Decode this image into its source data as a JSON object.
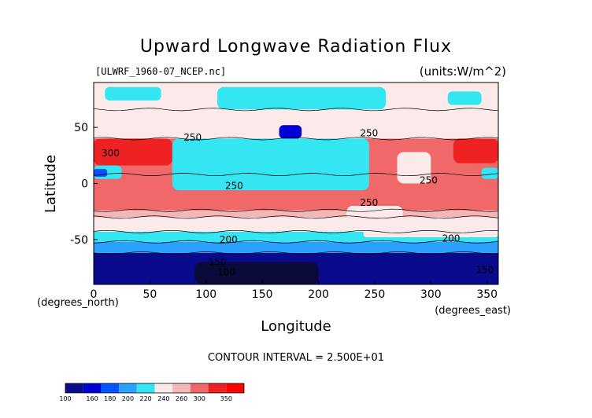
{
  "chart_data": {
    "type": "heatmap",
    "title": "Upward Longwave Radiation Flux",
    "subtitle_left": "[ULWRF_1960-07_NCEP.nc]",
    "subtitle_right": "(units:W/m^2)",
    "xlabel": "Longitude",
    "ylabel": "Latitude",
    "x_unit_label": "(degrees_east)",
    "y_unit_label": "(degrees_north)",
    "xlim": [
      0,
      360
    ],
    "ylim": [
      -90,
      90
    ],
    "x_ticks": [
      0,
      50,
      100,
      150,
      200,
      250,
      300,
      350
    ],
    "y_ticks": [
      -50,
      0,
      50
    ],
    "contour_interval_text": "CONTOUR INTERVAL = 2.500E+01",
    "contour_labels": [
      {
        "text": "300",
        "lon": 15,
        "lat": 24
      },
      {
        "text": "250",
        "lon": 88,
        "lat": 38
      },
      {
        "text": "250",
        "lon": 245,
        "lat": 42
      },
      {
        "text": "250",
        "lon": 125,
        "lat": -5
      },
      {
        "text": "250",
        "lon": 298,
        "lat": 0
      },
      {
        "text": "250",
        "lon": 245,
        "lat": -20
      },
      {
        "text": "200",
        "lon": 120,
        "lat": -53
      },
      {
        "text": "200",
        "lon": 318,
        "lat": -52
      },
      {
        "text": "150",
        "lon": 110,
        "lat": -73
      },
      {
        "text": "100",
        "lon": 118,
        "lat": -82
      },
      {
        "text": "150",
        "lon": 348,
        "lat": -80
      }
    ],
    "colorbar": {
      "labels": [
        "100",
        "160",
        "180",
        "200",
        "220",
        "240",
        "260",
        "300",
        "350"
      ],
      "colors": [
        "#0a0a8c",
        "#0000d2",
        "#0055ff",
        "#2aa0ff",
        "#33e6f2",
        "#fbeaea",
        "#f7b6b6",
        "#f06868",
        "#ee2222",
        "#ff0000"
      ]
    },
    "bands": [
      {
        "lat_top": -62,
        "lat_bot": -90,
        "color": "#0a0a8c"
      },
      {
        "lat_top": -52,
        "lat_bot": -62,
        "color": "#2aa0ff"
      },
      {
        "lat_top": -43,
        "lat_bot": -52,
        "color": "#33e6f2"
      },
      {
        "lat_top": -30,
        "lat_bot": -43,
        "color": "#fbeaea"
      },
      {
        "lat_top": -24,
        "lat_bot": -30,
        "color": "#f7b6b6"
      },
      {
        "lat_top": 8,
        "lat_bot": -24,
        "color": "#f06868"
      },
      {
        "lat_top": 40,
        "lat_bot": 8,
        "color": "#f06868"
      },
      {
        "lat_top": 66,
        "lat_bot": 40,
        "color": "#fbeaea"
      },
      {
        "lat_top": 90,
        "lat_bot": 66,
        "color": "#fbeaea"
      }
    ],
    "patches": [
      {
        "lon": [
          0,
          70
        ],
        "lat": [
          16,
          40
        ],
        "color": "#ee2222"
      },
      {
        "lon": [
          320,
          360
        ],
        "lat": [
          18,
          40
        ],
        "color": "#ee2222"
      },
      {
        "lon": [
          0,
          25
        ],
        "lat": [
          4,
          16
        ],
        "color": "#33e6f2"
      },
      {
        "lon": [
          0,
          12
        ],
        "lat": [
          6,
          13
        ],
        "color": "#0055ff"
      },
      {
        "lon": [
          70,
          245
        ],
        "lat": [
          -6,
          40
        ],
        "color": "#33e6f2"
      },
      {
        "lon": [
          165,
          185
        ],
        "lat": [
          40,
          52
        ],
        "color": "#0000d2"
      },
      {
        "lon": [
          225,
          275
        ],
        "lat": [
          -20,
          -36
        ],
        "color": "#fbeaea"
      },
      {
        "lon": [
          240,
          360
        ],
        "lat": [
          -40,
          -48
        ],
        "color": "#fbeaea"
      },
      {
        "lon": [
          270,
          300
        ],
        "lat": [
          0,
          28
        ],
        "color": "#fbeaea"
      },
      {
        "lon": [
          345,
          360
        ],
        "lat": [
          4,
          14
        ],
        "color": "#33e6f2"
      },
      {
        "lon": [
          10,
          60
        ],
        "lat": [
          74,
          86
        ],
        "color": "#33e6f2"
      },
      {
        "lon": [
          110,
          260
        ],
        "lat": [
          66,
          86
        ],
        "color": "#33e6f2"
      },
      {
        "lon": [
          315,
          345
        ],
        "lat": [
          70,
          82
        ],
        "color": "#33e6f2"
      },
      {
        "lon": [
          90,
          200
        ],
        "lat": [
          -70,
          -90
        ],
        "color": "#0a0a3a"
      }
    ]
  }
}
